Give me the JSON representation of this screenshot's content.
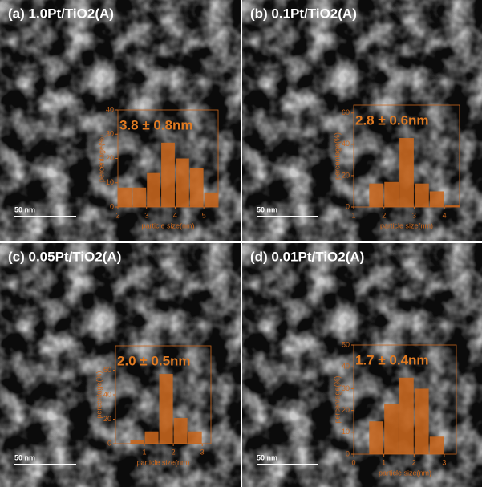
{
  "chart_data": [
    {
      "type": "histogram",
      "title": "(a) 1.0Pt/TiO2(A)",
      "annotation": "3.8 ± 0.8nm",
      "scale_bar": "50 nm",
      "xlabel": "particle size(nm)",
      "ylabel": "percentage(%)",
      "color": "#c8661e",
      "bins": [
        2,
        2.5,
        3,
        3.5,
        4,
        4.5,
        5,
        5.5
      ],
      "values": [
        8,
        8,
        14,
        26.5,
        20,
        16,
        6
      ],
      "xlim": [
        2,
        5.5
      ],
      "xticks": [
        2,
        3,
        4,
        5
      ],
      "ylim": [
        0,
        40
      ],
      "yticks": [
        0,
        10,
        20,
        30,
        40
      ]
    },
    {
      "type": "histogram",
      "title": "(b) 0.1Pt/TiO2(A)",
      "annotation": "2.8 ± 0.6nm",
      "scale_bar": "50 nm",
      "xlabel": "particle size(nm)",
      "ylabel": "percentage(%)",
      "color": "#c8661e",
      "bins": [
        1.5,
        2,
        2.5,
        3,
        3.5,
        4,
        4.5
      ],
      "values": [
        15,
        16,
        44,
        15,
        10,
        1
      ],
      "xlim": [
        1,
        4.5
      ],
      "xticks": [
        1,
        2,
        3,
        4
      ],
      "ylim": [
        0,
        65
      ],
      "yticks": [
        0,
        20,
        40,
        60
      ]
    },
    {
      "type": "histogram",
      "title": "(c) 0.05Pt/TiO2(A)",
      "annotation": "2.0 ± 0.5nm",
      "scale_bar": "50 nm",
      "xlabel": "particle size(nm)",
      "ylabel": "percentage(%)",
      "color": "#c8661e",
      "bins": [
        0.5,
        1,
        1.5,
        2,
        2.5,
        3
      ],
      "values": [
        3,
        10,
        57,
        21,
        10
      ],
      "xlim": [
        0,
        3.3
      ],
      "xticks": [
        1,
        2,
        3
      ],
      "ylim": [
        0,
        80
      ],
      "yticks": [
        0,
        20,
        40,
        60
      ]
    },
    {
      "type": "histogram",
      "title": "(d) 0.01Pt/TiO2(A)",
      "annotation": "1.7 ± 0.4nm",
      "scale_bar": "50 nm",
      "xlabel": "particle size(nm)",
      "ylabel": "percentage(%)",
      "color": "#c8661e",
      "bins": [
        0.5,
        1,
        1.5,
        2,
        2.5,
        3
      ],
      "values": [
        15,
        23,
        35,
        30,
        8
      ],
      "xlim": [
        0,
        3.4
      ],
      "xticks": [
        0,
        1,
        2,
        3
      ],
      "ylim": [
        0,
        50
      ],
      "yticks": [
        0,
        10,
        20,
        30,
        40,
        50
      ]
    }
  ]
}
